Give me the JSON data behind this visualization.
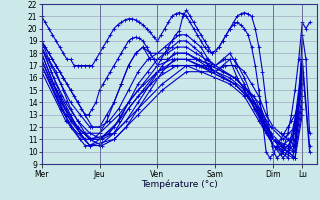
{
  "xlabel": "Température (°c)",
  "ylim": [
    9,
    22
  ],
  "yticks": [
    9,
    10,
    11,
    12,
    13,
    14,
    15,
    16,
    17,
    18,
    19,
    20,
    21,
    22
  ],
  "day_labels": [
    "Mer",
    "Jeu",
    "Ven",
    "Sam",
    "Dim",
    "Lu"
  ],
  "day_ticks": [
    0,
    48,
    96,
    144,
    192,
    216
  ],
  "xlim": [
    0,
    228
  ],
  "bg_color": "#cce8e8",
  "grid_color": "#9999bb",
  "line_color": "#0000cc",
  "series": [
    {
      "x": [
        0,
        3,
        6,
        9,
        12,
        15,
        18,
        21,
        24,
        27,
        30,
        33,
        36,
        39,
        42,
        45,
        48,
        51,
        54,
        57,
        60,
        63,
        66,
        69,
        72,
        75,
        78,
        81,
        84,
        87,
        90,
        93,
        96,
        99,
        102,
        105,
        108,
        111,
        114,
        117,
        120,
        123,
        126,
        129,
        132,
        135,
        138,
        141,
        144,
        147,
        150,
        153,
        156,
        159,
        162,
        165,
        168,
        171,
        174,
        177,
        180,
        183,
        186,
        189,
        192,
        195,
        198,
        201,
        204,
        207,
        210,
        213,
        216,
        219,
        222
      ],
      "y": [
        21,
        20.5,
        20,
        19.5,
        19,
        18.5,
        18,
        17.5,
        17.5,
        17,
        17,
        17,
        17,
        17,
        17,
        17.5,
        18,
        18.5,
        19,
        19.5,
        20,
        20.3,
        20.5,
        20.7,
        20.8,
        20.8,
        20.7,
        20.5,
        20.3,
        20,
        19.7,
        19.3,
        19,
        19.5,
        20,
        20.5,
        21,
        21.2,
        21.3,
        21.2,
        21,
        20.5,
        20,
        19.5,
        19,
        18.5,
        18.2,
        18,
        18.2,
        18.5,
        19,
        19.5,
        20,
        20.5,
        21,
        21.2,
        21.3,
        21.2,
        21,
        20,
        18.5,
        16.5,
        14,
        11.5,
        10,
        9.5,
        9.8,
        10.5,
        11.5,
        13,
        15,
        17.5,
        20.5,
        20,
        20.5
      ]
    },
    {
      "x": [
        0,
        3,
        6,
        9,
        12,
        15,
        18,
        21,
        24,
        27,
        30,
        33,
        36,
        39,
        42,
        45,
        48,
        51,
        54,
        57,
        60,
        63,
        66,
        69,
        72,
        75,
        78,
        81,
        84,
        87,
        90,
        93,
        96,
        99,
        102,
        105,
        108,
        111,
        114,
        117,
        120,
        123,
        126,
        129,
        132,
        135,
        138,
        141,
        144,
        147,
        150,
        153,
        156,
        159,
        162,
        165,
        168,
        171,
        174,
        177,
        180,
        183,
        186,
        189,
        192,
        195,
        198,
        201,
        204,
        207,
        210,
        213,
        216,
        219,
        222
      ],
      "y": [
        19,
        18.5,
        18,
        17.5,
        17,
        16.5,
        16,
        15.5,
        15,
        14.5,
        14,
        13.5,
        13,
        13,
        13.5,
        14,
        15,
        15.5,
        16,
        16.5,
        17,
        17.5,
        18,
        18.5,
        19,
        19.2,
        19.3,
        19.2,
        19,
        18.5,
        18,
        17.5,
        17,
        17.5,
        18,
        18.5,
        19,
        19.5,
        19.8,
        21,
        21.5,
        21,
        20.5,
        20,
        19.5,
        19,
        18.5,
        18,
        18.2,
        18.5,
        19,
        19.5,
        20,
        20.3,
        20.5,
        20.3,
        20,
        19.5,
        18.5,
        17,
        15,
        12.5,
        10,
        9.5,
        9.8,
        10.5,
        11,
        11.5,
        12,
        12.5,
        13,
        14,
        19.5,
        17.5,
        11.5
      ]
    },
    {
      "x": [
        0,
        6,
        12,
        18,
        24,
        30,
        36,
        42,
        48,
        54,
        60,
        66,
        72,
        78,
        84,
        90,
        96,
        102,
        108,
        114,
        120,
        126,
        132,
        138,
        144,
        150,
        156,
        162,
        168,
        174,
        180,
        186,
        192,
        198,
        204,
        210,
        216,
        222
      ],
      "y": [
        19,
        18,
        17,
        16,
        15,
        14,
        13,
        12,
        12,
        13,
        14,
        15.5,
        17,
        18,
        18.5,
        18,
        18,
        18.5,
        19,
        19.5,
        19.5,
        19,
        18.5,
        17.5,
        17,
        17.5,
        18,
        17,
        16.5,
        15.5,
        14.5,
        13,
        12,
        11.5,
        11,
        10.5,
        17.5,
        10.5
      ]
    },
    {
      "x": [
        0,
        6,
        12,
        18,
        24,
        30,
        36,
        42,
        48,
        54,
        60,
        66,
        72,
        78,
        84,
        90,
        96,
        102,
        108,
        114,
        120,
        126,
        132,
        138,
        144,
        150,
        156,
        162,
        168,
        174,
        180,
        186,
        192,
        198,
        204,
        210,
        216,
        222
      ],
      "y": [
        19,
        17.5,
        16.5,
        15,
        13.5,
        12.5,
        11.5,
        11,
        11.5,
        12.5,
        14,
        15.5,
        17,
        18,
        18.5,
        17.5,
        17.5,
        18,
        18.5,
        19,
        19,
        18.5,
        18,
        17,
        16.5,
        17,
        17.5,
        16,
        15,
        14,
        13,
        11.5,
        11,
        10.5,
        10,
        9.5,
        17,
        10.0
      ]
    },
    {
      "x": [
        0,
        8,
        16,
        24,
        32,
        40,
        48,
        56,
        64,
        72,
        80,
        88,
        96,
        104,
        112,
        120,
        128,
        136,
        144,
        152,
        160,
        168,
        176,
        184,
        192,
        200,
        208,
        216
      ],
      "y": [
        18.5,
        17,
        15.5,
        14,
        13,
        12,
        12,
        12.5,
        13.5,
        15,
        16.5,
        17.5,
        18,
        18,
        18.5,
        18.5,
        18,
        17.5,
        17,
        17.5,
        17.5,
        16,
        14,
        12.5,
        11,
        10,
        11,
        17.5
      ]
    },
    {
      "x": [
        0,
        8,
        16,
        24,
        32,
        40,
        48,
        56,
        64,
        72,
        80,
        88,
        96,
        104,
        112,
        120,
        128,
        136,
        144,
        152,
        160,
        168,
        176,
        184,
        192,
        200,
        208,
        216
      ],
      "y": [
        18.5,
        16.5,
        14.5,
        13,
        11.5,
        10.5,
        11,
        11.5,
        12.5,
        14,
        15.5,
        16.5,
        17.5,
        17.5,
        18,
        18,
        17.5,
        17,
        16.5,
        17,
        17,
        15.5,
        13.5,
        12,
        10.5,
        9.5,
        10.5,
        17
      ]
    },
    {
      "x": [
        0,
        10,
        20,
        30,
        40,
        50,
        60,
        70,
        80,
        90,
        100,
        110,
        120,
        130,
        140,
        150,
        160,
        170,
        180,
        190,
        200,
        210,
        216
      ],
      "y": [
        18.5,
        16,
        14,
        12.5,
        11.5,
        11,
        11.5,
        12.5,
        14,
        15.5,
        17,
        18,
        18,
        17.5,
        17,
        16.5,
        16,
        15,
        13.5,
        12,
        11,
        12,
        16.5
      ]
    },
    {
      "x": [
        0,
        10,
        20,
        30,
        40,
        50,
        60,
        70,
        80,
        90,
        100,
        110,
        120,
        130,
        140,
        150,
        160,
        170,
        180,
        190,
        200,
        210,
        216
      ],
      "y": [
        18,
        15.5,
        13.5,
        12,
        11,
        10.5,
        11,
        12,
        13.5,
        15,
        16.5,
        17.5,
        17.5,
        17,
        16.5,
        16,
        15.5,
        14.5,
        13,
        11.5,
        10.5,
        11.5,
        16
      ]
    },
    {
      "x": [
        0,
        12,
        24,
        36,
        48,
        60,
        72,
        84,
        96,
        108,
        120,
        132,
        144,
        156,
        168,
        180,
        192,
        204,
        216
      ],
      "y": [
        18,
        15,
        12.5,
        11,
        11,
        12,
        14,
        15.5,
        17,
        17.5,
        17.5,
        17,
        16.5,
        16,
        15,
        13,
        11,
        10,
        15.5
      ]
    },
    {
      "x": [
        0,
        12,
        24,
        36,
        48,
        60,
        72,
        84,
        96,
        108,
        120,
        132,
        144,
        156,
        168,
        180,
        192,
        204,
        216
      ],
      "y": [
        17.5,
        14.5,
        12,
        10.5,
        10.5,
        11.5,
        13.5,
        15,
        16.5,
        17,
        17,
        16.5,
        16,
        15.5,
        14.5,
        12.5,
        10.5,
        9.5,
        15
      ]
    },
    {
      "x": [
        0,
        16,
        32,
        48,
        64,
        80,
        96,
        112,
        128,
        144,
        160,
        176,
        192,
        208,
        216
      ],
      "y": [
        17.5,
        14,
        11.5,
        11.5,
        13,
        15,
        16.5,
        17.5,
        17.5,
        17,
        16,
        14.5,
        11,
        10,
        14.5
      ]
    },
    {
      "x": [
        0,
        16,
        32,
        48,
        64,
        80,
        96,
        112,
        128,
        144,
        160,
        176,
        192,
        208,
        216
      ],
      "y": [
        17,
        13.5,
        11,
        11,
        12.5,
        14.5,
        16,
        17,
        17,
        16.5,
        15.5,
        14,
        10.5,
        9.5,
        14
      ]
    },
    {
      "x": [
        0,
        20,
        40,
        60,
        80,
        100,
        120,
        140,
        160,
        180,
        192,
        204,
        210,
        216
      ],
      "y": [
        17,
        13,
        11,
        11.5,
        13.5,
        15.5,
        17,
        17,
        16,
        14,
        11,
        10.5,
        10,
        13.5
      ]
    },
    {
      "x": [
        0,
        20,
        40,
        60,
        80,
        100,
        120,
        140,
        160,
        180,
        192,
        204,
        210,
        216
      ],
      "y": [
        16.5,
        12.5,
        10.5,
        11,
        13,
        15,
        16.5,
        16.5,
        15.5,
        13.5,
        10.5,
        10,
        9.5,
        13
      ]
    }
  ]
}
